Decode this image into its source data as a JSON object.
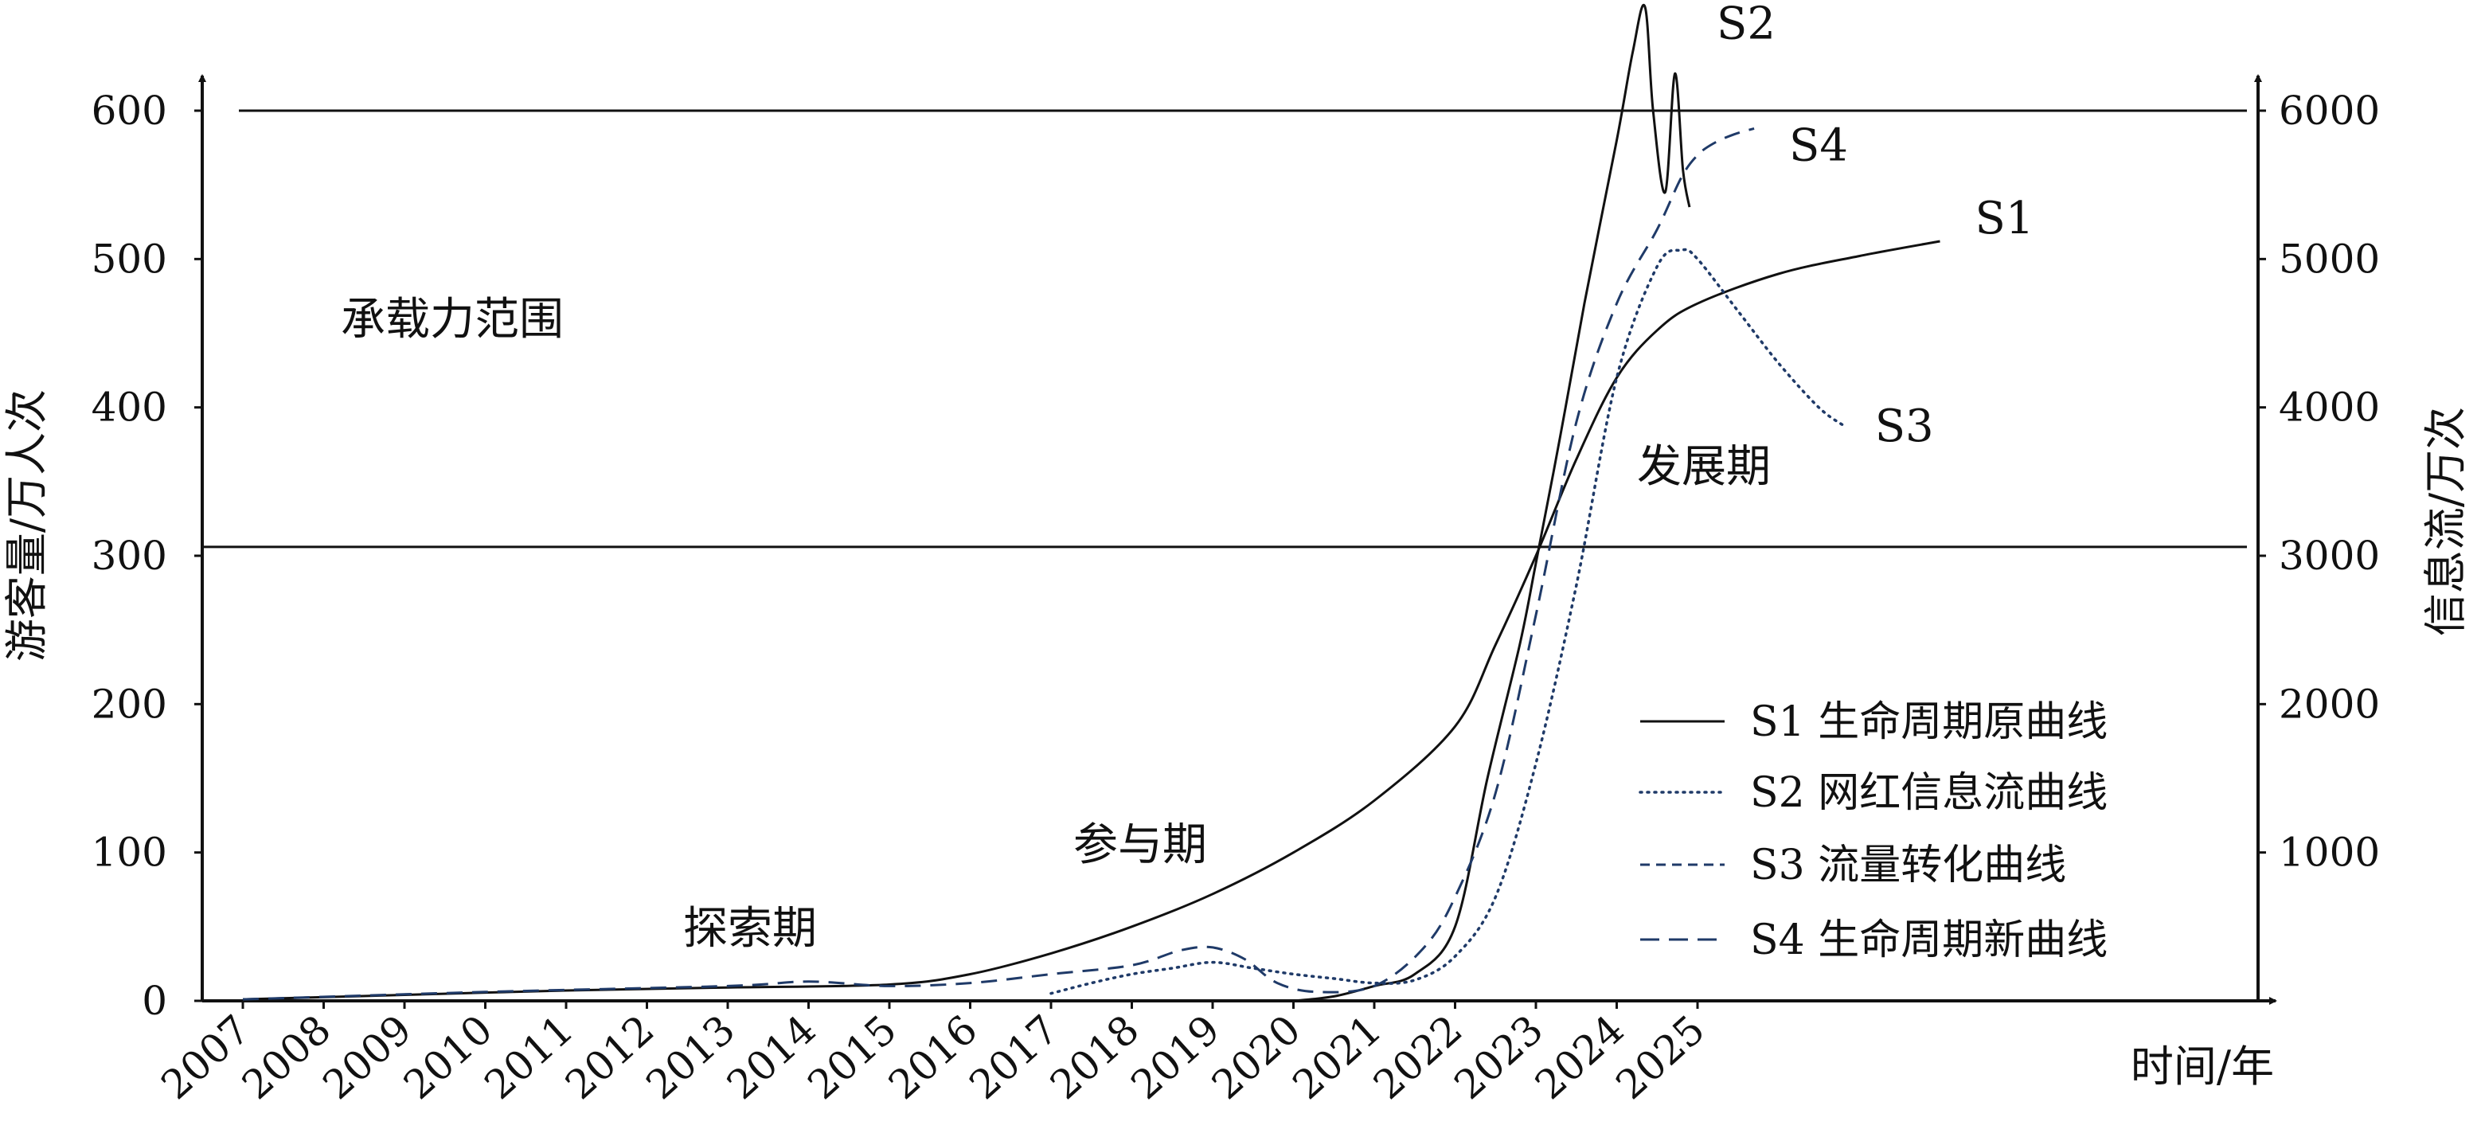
{
  "chart_data": {
    "type": "line",
    "xlabel": "时间/年",
    "ylabel_left": "游客量/万人次",
    "ylabel_right": "信息流/万次",
    "x_ticks": [
      "2007",
      "2008",
      "2009",
      "2010",
      "2011",
      "2012",
      "2013",
      "2014",
      "2015",
      "2016",
      "2017",
      "2018",
      "2019",
      "2020",
      "2021",
      "2022",
      "2023",
      "2024",
      "2025"
    ],
    "y_left_ticks": [
      "0",
      "100",
      "200",
      "300",
      "400",
      "500",
      "600"
    ],
    "y_right_ticks": [
      "1000",
      "2000",
      "3000",
      "4000",
      "5000",
      "6000"
    ],
    "ylim_left": [
      0,
      660
    ],
    "ylim_right": [
      0,
      6600
    ],
    "grid": false,
    "legend_position": "bottom-right",
    "annotations": {
      "capacity": "承载力范围",
      "explore": "探索期",
      "participate": "参与期",
      "develop": "发展期"
    },
    "series": [
      {
        "name": "S1 生命周期原曲线",
        "end_label": "S1",
        "style": "solid",
        "color": "#111111",
        "axis": "left",
        "x": [
          2007,
          2009,
          2011,
          2013,
          2015,
          2016,
          2017,
          2018,
          2019,
          2020,
          2021,
          2022,
          2022.5,
          2023,
          2023.5,
          2024,
          2024.5,
          2025,
          2026,
          2027,
          2028
        ],
        "y": [
          1,
          4,
          7,
          9,
          11,
          18,
          32,
          50,
          72,
          100,
          135,
          185,
          240,
          300,
          365,
          420,
          452,
          470,
          490,
          502,
          512
        ]
      },
      {
        "name": "S2 网红信息流曲线",
        "end_label": "S2",
        "style": "solid",
        "color": "#111111",
        "axis": "left",
        "x": [
          2020,
          2020.5,
          2021,
          2021.5,
          2022,
          2022.4,
          2022.8,
          2023,
          2023.3,
          2023.6,
          2024,
          2024.2,
          2024.35,
          2024.45,
          2024.6,
          2024.72,
          2024.82,
          2024.9
        ],
        "y": [
          0,
          3,
          10,
          18,
          50,
          150,
          240,
          295,
          380,
          470,
          580,
          640,
          670,
          600,
          545,
          625,
          560,
          535
        ]
      },
      {
        "name": "S3 流量转化曲线",
        "end_label": "S3",
        "style": "dotted",
        "color": "#1f3a68",
        "axis": "left",
        "x": [
          2017,
          2017.5,
          2018,
          2018.5,
          2019,
          2019.5,
          2020,
          2020.5,
          2021,
          2021.5,
          2022,
          2022.5,
          2023,
          2023.5,
          2024,
          2024.5,
          2024.8,
          2025,
          2025.5,
          2026,
          2026.5,
          2026.8
        ],
        "y": [
          5,
          12,
          18,
          22,
          26,
          22,
          18,
          15,
          12,
          14,
          30,
          70,
          160,
          280,
          420,
          495,
          506,
          500,
          465,
          430,
          400,
          388
        ]
      },
      {
        "name": "S4 生命周期新曲线",
        "end_label": "S4",
        "style": "dashed",
        "color": "#1f3a68",
        "axis": "left",
        "x": [
          2007,
          2010,
          2013,
          2014,
          2015,
          2016,
          2017,
          2018,
          2018.6,
          2019,
          2019.4,
          2019.8,
          2020.3,
          2021,
          2021.6,
          2022,
          2022.5,
          2023,
          2023.5,
          2024,
          2024.5,
          2024.8,
          2025,
          2025.2,
          2025.45,
          2025.7
        ],
        "y": [
          1,
          6,
          10,
          13,
          10,
          12,
          18,
          24,
          34,
          36,
          28,
          12,
          6,
          10,
          35,
          70,
          140,
          260,
          390,
          470,
          520,
          555,
          570,
          578,
          584,
          588
        ]
      }
    ],
    "legend": [
      "S1 生命周期原曲线",
      "S2 网红信息流曲线",
      "S3 流量转化曲线",
      "S4 生命周期新曲线"
    ],
    "reference_lines": [
      {
        "axis": "left",
        "y": 600
      },
      {
        "axis": "left",
        "y": 306
      }
    ]
  }
}
